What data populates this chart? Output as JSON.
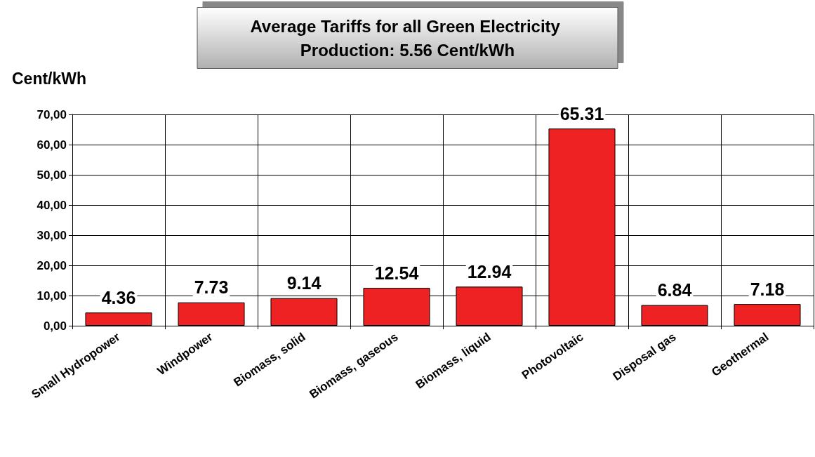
{
  "chart_data": {
    "type": "bar",
    "title": "Average Tariffs for all Green Electricity Production: 5.56 Cent/kWh",
    "ylabel": "Cent/kWh",
    "categories": [
      "Small Hydropower",
      "Windpower",
      "Biomass, solid",
      "Biomass, gaseous",
      "Biomass, liquid",
      "Photovoltaic",
      "Disposal gas",
      "Geothermal"
    ],
    "values": [
      4.36,
      7.73,
      9.14,
      12.54,
      12.94,
      65.31,
      6.84,
      7.18
    ],
    "color": "#ee2222",
    "ylim": [
      0,
      70
    ],
    "yticks": [
      {
        "value": 0,
        "label": "0,00"
      },
      {
        "value": 10,
        "label": "10,00"
      },
      {
        "value": 20,
        "label": "20,00"
      },
      {
        "value": 30,
        "label": "30,00"
      },
      {
        "value": 40,
        "label": "40,00"
      },
      {
        "value": 50,
        "label": "50,00"
      },
      {
        "value": 60,
        "label": "60,00"
      },
      {
        "value": 70,
        "label": "70,00"
      }
    ],
    "data_labels": true,
    "grid": true
  }
}
